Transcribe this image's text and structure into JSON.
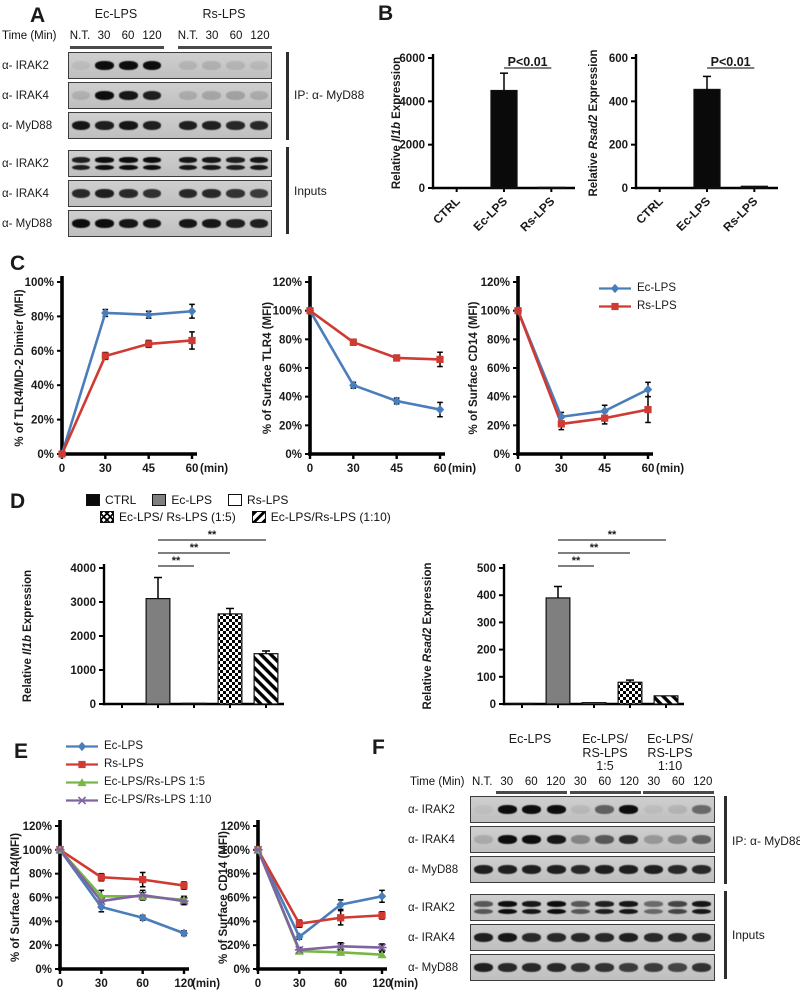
{
  "colors": {
    "blue": "#4a7ebb",
    "red": "#cf3a32",
    "green": "#77b843",
    "purple": "#8064a2",
    "bar_black": "#0a0a0a",
    "bar_gray": "#7f7f7f"
  },
  "panels": {
    "A": {
      "label": "A",
      "time_label": "Time (Min)",
      "groups": [
        {
          "lines": [
            "Ec-LPS"
          ]
        },
        {
          "lines": [
            "Rs-LPS"
          ]
        }
      ],
      "lanes": [
        "N.T.",
        "30",
        "60",
        "120",
        "N.T.",
        "30",
        "60",
        "120"
      ],
      "gap_after_lane": 4,
      "rows": [
        {
          "label": "α- IRAK2",
          "bands": [
            0.06,
            1,
            1,
            1,
            0.1,
            0.12,
            0.1,
            0.08
          ]
        },
        {
          "label": "α- IRAK4",
          "bands": [
            0.12,
            1,
            0.95,
            0.9,
            0.15,
            0.18,
            0.2,
            0.15
          ]
        },
        {
          "label": "α- MyD88",
          "bands": [
            0.95,
            0.9,
            0.95,
            0.9,
            0.9,
            0.9,
            0.85,
            0.85
          ]
        },
        {
          "label": "α- IRAK2",
          "bands": [
            0.9,
            1,
            1,
            1,
            0.95,
            0.95,
            0.9,
            0.95
          ],
          "double": true
        },
        {
          "label": "α- IRAK4",
          "bands": [
            0.85,
            0.9,
            0.85,
            0.8,
            0.85,
            0.85,
            0.8,
            0.75
          ]
        },
        {
          "label": "α- MyD88",
          "bands": [
            1,
            1,
            0.95,
            0.95,
            0.95,
            0.95,
            0.9,
            0.9
          ]
        }
      ],
      "brackets": [
        "IP: α- MyD88",
        "Inputs"
      ]
    },
    "B": {
      "label": "B"
    },
    "C": {
      "label": "C"
    },
    "D": {
      "label": "D"
    },
    "E": {
      "label": "E"
    },
    "F": {
      "label": "F",
      "time_label": "Time (Min)",
      "groups": [
        {
          "lines": [
            "Ec-LPS"
          ]
        },
        {
          "lines": [
            "Ec-LPS/",
            "RS-LPS",
            "1:5"
          ]
        },
        {
          "lines": [
            "Ec-LPS/",
            "RS-LPS",
            "1:10"
          ]
        }
      ],
      "lanes": [
        "N.T.",
        "30",
        "60",
        "120",
        "30",
        "60",
        "120",
        "30",
        "60",
        "120"
      ],
      "rows": [
        {
          "label": "α- IRAK2",
          "bands": [
            0.04,
            1,
            1,
            1,
            0.08,
            0.55,
            1,
            0.05,
            0.1,
            0.5
          ]
        },
        {
          "label": "α- IRAK4",
          "bands": [
            0.15,
            1,
            1,
            0.95,
            0.35,
            0.6,
            0.85,
            0.25,
            0.35,
            0.55
          ]
        },
        {
          "label": "α- MyD88",
          "bands": [
            0.9,
            0.9,
            0.9,
            0.9,
            0.85,
            0.9,
            0.9,
            0.9,
            0.85,
            0.85
          ]
        },
        {
          "label": "α- IRAK2",
          "bands": [
            0.6,
            1,
            0.95,
            1,
            0.6,
            0.9,
            0.95,
            0.5,
            0.7,
            0.95
          ],
          "double": true
        },
        {
          "label": "α- IRAK4",
          "bands": [
            0.9,
            0.95,
            0.85,
            0.85,
            0.85,
            0.85,
            0.9,
            0.85,
            0.85,
            0.85
          ]
        },
        {
          "label": "α- MyD88",
          "bands": [
            0.9,
            0.85,
            0.85,
            0.85,
            0.8,
            0.8,
            0.75,
            0.75,
            0.7,
            0.8
          ]
        }
      ],
      "brackets": [
        "IP: α- MyD88",
        "Inputs"
      ]
    }
  },
  "legends": {
    "C": {
      "type": "line",
      "items": [
        {
          "label": "Ec-LPS",
          "color": "#4a7ebb",
          "marker": "diamond"
        },
        {
          "label": "Rs-LPS",
          "color": "#cf3a32",
          "marker": "square"
        }
      ]
    },
    "E": {
      "type": "line",
      "items": [
        {
          "label": "Ec-LPS",
          "color": "#4a7ebb",
          "marker": "diamond"
        },
        {
          "label": "Rs-LPS",
          "color": "#cf3a32",
          "marker": "square"
        },
        {
          "label": "Ec-LPS/Rs-LPS 1:5",
          "color": "#77b843",
          "marker": "triangle"
        },
        {
          "label": "Ec-LPS/Rs-LPS 1:10",
          "color": "#8064a2",
          "marker": "x"
        }
      ]
    },
    "D": {
      "type": "swatch",
      "rows": [
        [
          {
            "label": "CTRL",
            "fill": "black"
          },
          {
            "label": "Ec-LPS",
            "fill": "gray"
          },
          {
            "label": "Rs-LPS",
            "fill": "white"
          }
        ],
        [
          {
            "label": "Ec-LPS/ Rs-LPS (1:5)",
            "fill": "checker"
          },
          {
            "label": "Ec-LPS/Rs-LPS (1:10)",
            "fill": "stripe"
          }
        ]
      ]
    }
  },
  "chart_data": [
    {
      "id": "B1",
      "type": "bar",
      "ylabel_parts": [
        {
          "t": "Relative ",
          "i": false
        },
        {
          "t": "Il1b",
          "i": true
        },
        {
          "t": " Expression",
          "i": false
        }
      ],
      "categories": [
        "CTRL",
        "Ec-LPS",
        "Rs-LPS"
      ],
      "values": [
        0,
        4500,
        30
      ],
      "errors": [
        0,
        800,
        0
      ],
      "fills": [
        "black",
        "black",
        "black"
      ],
      "ylim": [
        0,
        6000
      ],
      "yticks": [
        0,
        2000,
        4000,
        6000
      ],
      "rotate_xlabels": true,
      "bar_frac": 0.55,
      "sig": [
        {
          "from": 1,
          "to": 2,
          "label": "P<0.01",
          "dy": 10,
          "big": true
        }
      ]
    },
    {
      "id": "B2",
      "type": "bar",
      "ylabel_parts": [
        {
          "t": "Relative ",
          "i": false
        },
        {
          "t": "Rsad2",
          "i": true
        },
        {
          "t": " Expression",
          "i": false
        }
      ],
      "categories": [
        "CTRL",
        "Ec-LPS",
        "Rs-LPS"
      ],
      "values": [
        0,
        455,
        8
      ],
      "errors": [
        0,
        60,
        0
      ],
      "fills": [
        "black",
        "black",
        "black"
      ],
      "ylim": [
        0,
        600
      ],
      "yticks": [
        0,
        200,
        400,
        600
      ],
      "rotate_xlabels": true,
      "bar_frac": 0.55,
      "sig": [
        {
          "from": 1,
          "to": 2,
          "label": "P<0.01",
          "dy": 10,
          "big": true
        }
      ]
    },
    {
      "id": "C1",
      "type": "line",
      "ylabel": "% of TLR4/MD-2 Dimier (MFI)",
      "x": [
        "0",
        "30",
        "45",
        "60"
      ],
      "xunit": "(min)",
      "ylim": [
        0,
        100
      ],
      "yticks": [
        0,
        20,
        40,
        60,
        80,
        100
      ],
      "percent": true,
      "series": [
        {
          "name": "Ec-LPS",
          "color": "#4a7ebb",
          "marker": "diamond",
          "values": [
            0,
            82,
            81,
            83
          ],
          "errors": [
            0,
            2,
            2,
            4
          ]
        },
        {
          "name": "Rs-LPS",
          "color": "#cf3a32",
          "marker": "square",
          "values": [
            0,
            57,
            64,
            66
          ],
          "errors": [
            0,
            2,
            2,
            5
          ]
        }
      ]
    },
    {
      "id": "C2",
      "type": "line",
      "ylabel": "% of Surface TLR4 (MFI)",
      "x": [
        "0",
        "30",
        "45",
        "60"
      ],
      "xunit": "(min)",
      "ylim": [
        0,
        120
      ],
      "yticks": [
        0,
        20,
        40,
        60,
        80,
        100,
        120
      ],
      "percent": true,
      "series": [
        {
          "name": "Ec-LPS",
          "color": "#4a7ebb",
          "marker": "diamond",
          "values": [
            100,
            48,
            37,
            31
          ],
          "errors": [
            0,
            2,
            2,
            5
          ]
        },
        {
          "name": "Rs-LPS",
          "color": "#cf3a32",
          "marker": "square",
          "values": [
            100,
            78,
            67,
            66
          ],
          "errors": [
            0,
            2,
            2,
            5
          ]
        }
      ]
    },
    {
      "id": "C3",
      "type": "line",
      "ylabel": "% of Surface CD14 (MFI)",
      "x": [
        "0",
        "30",
        "45",
        "60"
      ],
      "xunit": "(min)",
      "ylim": [
        0,
        120
      ],
      "yticks": [
        0,
        20,
        40,
        60,
        80,
        100,
        120
      ],
      "percent": true,
      "series": [
        {
          "name": "Ec-LPS",
          "color": "#4a7ebb",
          "marker": "diamond",
          "values": [
            100,
            26,
            30,
            45
          ],
          "errors": [
            0,
            3,
            4,
            5
          ]
        },
        {
          "name": "Rs-LPS",
          "color": "#cf3a32",
          "marker": "square",
          "values": [
            100,
            21,
            25,
            31
          ],
          "errors": [
            0,
            4,
            4,
            9
          ]
        }
      ]
    },
    {
      "id": "D1",
      "type": "bar",
      "ylabel_parts": [
        {
          "t": "Relative ",
          "i": false
        },
        {
          "t": "Il1b",
          "i": true
        },
        {
          "t": " Expression",
          "i": false
        }
      ],
      "categories": [
        "CTRL",
        "Ec-LPS",
        "Rs-LPS",
        "Ec-LPS/ Rs-LPS (1:5)",
        "Ec-LPS/Rs-LPS (1:10)"
      ],
      "values": [
        0,
        3100,
        20,
        2650,
        1480
      ],
      "errors": [
        0,
        620,
        0,
        160,
        80
      ],
      "fills": [
        "black",
        "gray",
        "white",
        "checker",
        "stripe"
      ],
      "ylim": [
        0,
        4000
      ],
      "yticks": [
        0,
        1000,
        2000,
        3000,
        4000
      ],
      "rotate_xlabels": false,
      "hide_xlabels": true,
      "bar_frac": 0.66,
      "sig": [
        {
          "from": 1,
          "to": 4,
          "label": "**",
          "dy": -28
        },
        {
          "from": 1,
          "to": 3,
          "label": "**",
          "dy": -15
        },
        {
          "from": 1,
          "to": 2,
          "label": "**",
          "dy": -2
        }
      ]
    },
    {
      "id": "D2",
      "type": "bar",
      "ylabel_parts": [
        {
          "t": "Relative ",
          "i": false
        },
        {
          "t": "Rsad2",
          "i": true
        },
        {
          "t": " Expression",
          "i": false
        }
      ],
      "categories": [
        "CTRL",
        "Ec-LPS",
        "Rs-LPS",
        "Ec-LPS/ Rs-LPS (1:5)",
        "Ec-LPS/Rs-LPS (1:10)"
      ],
      "values": [
        2,
        390,
        5,
        80,
        30
      ],
      "errors": [
        0,
        42,
        0,
        8,
        0
      ],
      "fills": [
        "black",
        "gray",
        "white",
        "checker",
        "stripe"
      ],
      "ylim": [
        0,
        500
      ],
      "yticks": [
        0,
        100,
        200,
        300,
        400,
        500
      ],
      "rotate_xlabels": false,
      "hide_xlabels": true,
      "bar_frac": 0.66,
      "sig": [
        {
          "from": 1,
          "to": 4,
          "label": "**",
          "dy": -28
        },
        {
          "from": 1,
          "to": 3,
          "label": "**",
          "dy": -15
        },
        {
          "from": 1,
          "to": 2,
          "label": "**",
          "dy": -2
        }
      ]
    },
    {
      "id": "E1",
      "type": "line",
      "ylabel": "% of Surface TLR4(MFI)",
      "x": [
        "0",
        "30",
        "60",
        "120"
      ],
      "xunit": "(min)",
      "ylim": [
        0,
        120
      ],
      "yticks": [
        0,
        20,
        40,
        60,
        80,
        100,
        120
      ],
      "percent": true,
      "series": [
        {
          "name": "Ec-LPS",
          "color": "#4a7ebb",
          "marker": "diamond",
          "values": [
            100,
            52,
            43,
            30
          ],
          "errors": [
            0,
            4,
            2,
            2
          ]
        },
        {
          "name": "Rs-LPS",
          "color": "#cf3a32",
          "marker": "square",
          "values": [
            100,
            77,
            75,
            70
          ],
          "errors": [
            0,
            3,
            6,
            3
          ]
        },
        {
          "name": "Ec-LPS/Rs-LPS 1:5",
          "color": "#77b843",
          "marker": "triangle",
          "values": [
            100,
            61,
            61,
            58
          ],
          "errors": [
            0,
            5,
            3,
            3
          ]
        },
        {
          "name": "Ec-LPS/Rs-LPS 1:10",
          "color": "#8064a2",
          "marker": "x",
          "values": [
            100,
            57,
            62,
            57
          ],
          "errors": [
            0,
            4,
            4,
            3
          ]
        }
      ]
    },
    {
      "id": "E2",
      "type": "line",
      "ylabel": "% of Surface CD14 (MFI)",
      "x": [
        "0",
        "30",
        "60",
        "120"
      ],
      "xunit": "(min)",
      "ylim": [
        0,
        120
      ],
      "yticks": [
        0,
        20,
        40,
        60,
        80,
        100,
        120
      ],
      "percent": true,
      "series": [
        {
          "name": "Ec-LPS",
          "color": "#4a7ebb",
          "marker": "diamond",
          "values": [
            100,
            27,
            54,
            61
          ],
          "errors": [
            0,
            2,
            4,
            5
          ]
        },
        {
          "name": "Rs-LPS",
          "color": "#cf3a32",
          "marker": "square",
          "values": [
            100,
            38,
            43,
            45
          ],
          "errors": [
            0,
            3,
            6,
            3
          ]
        },
        {
          "name": "Ec-LPS/Rs-LPS 1:5",
          "color": "#77b843",
          "marker": "triangle",
          "values": [
            100,
            15,
            14,
            12
          ],
          "errors": [
            0,
            2,
            2,
            2
          ]
        },
        {
          "name": "Ec-LPS/Rs-LPS 1:10",
          "color": "#8064a2",
          "marker": "x",
          "values": [
            100,
            16,
            19,
            18
          ],
          "errors": [
            0,
            2,
            3,
            3
          ]
        }
      ]
    }
  ]
}
